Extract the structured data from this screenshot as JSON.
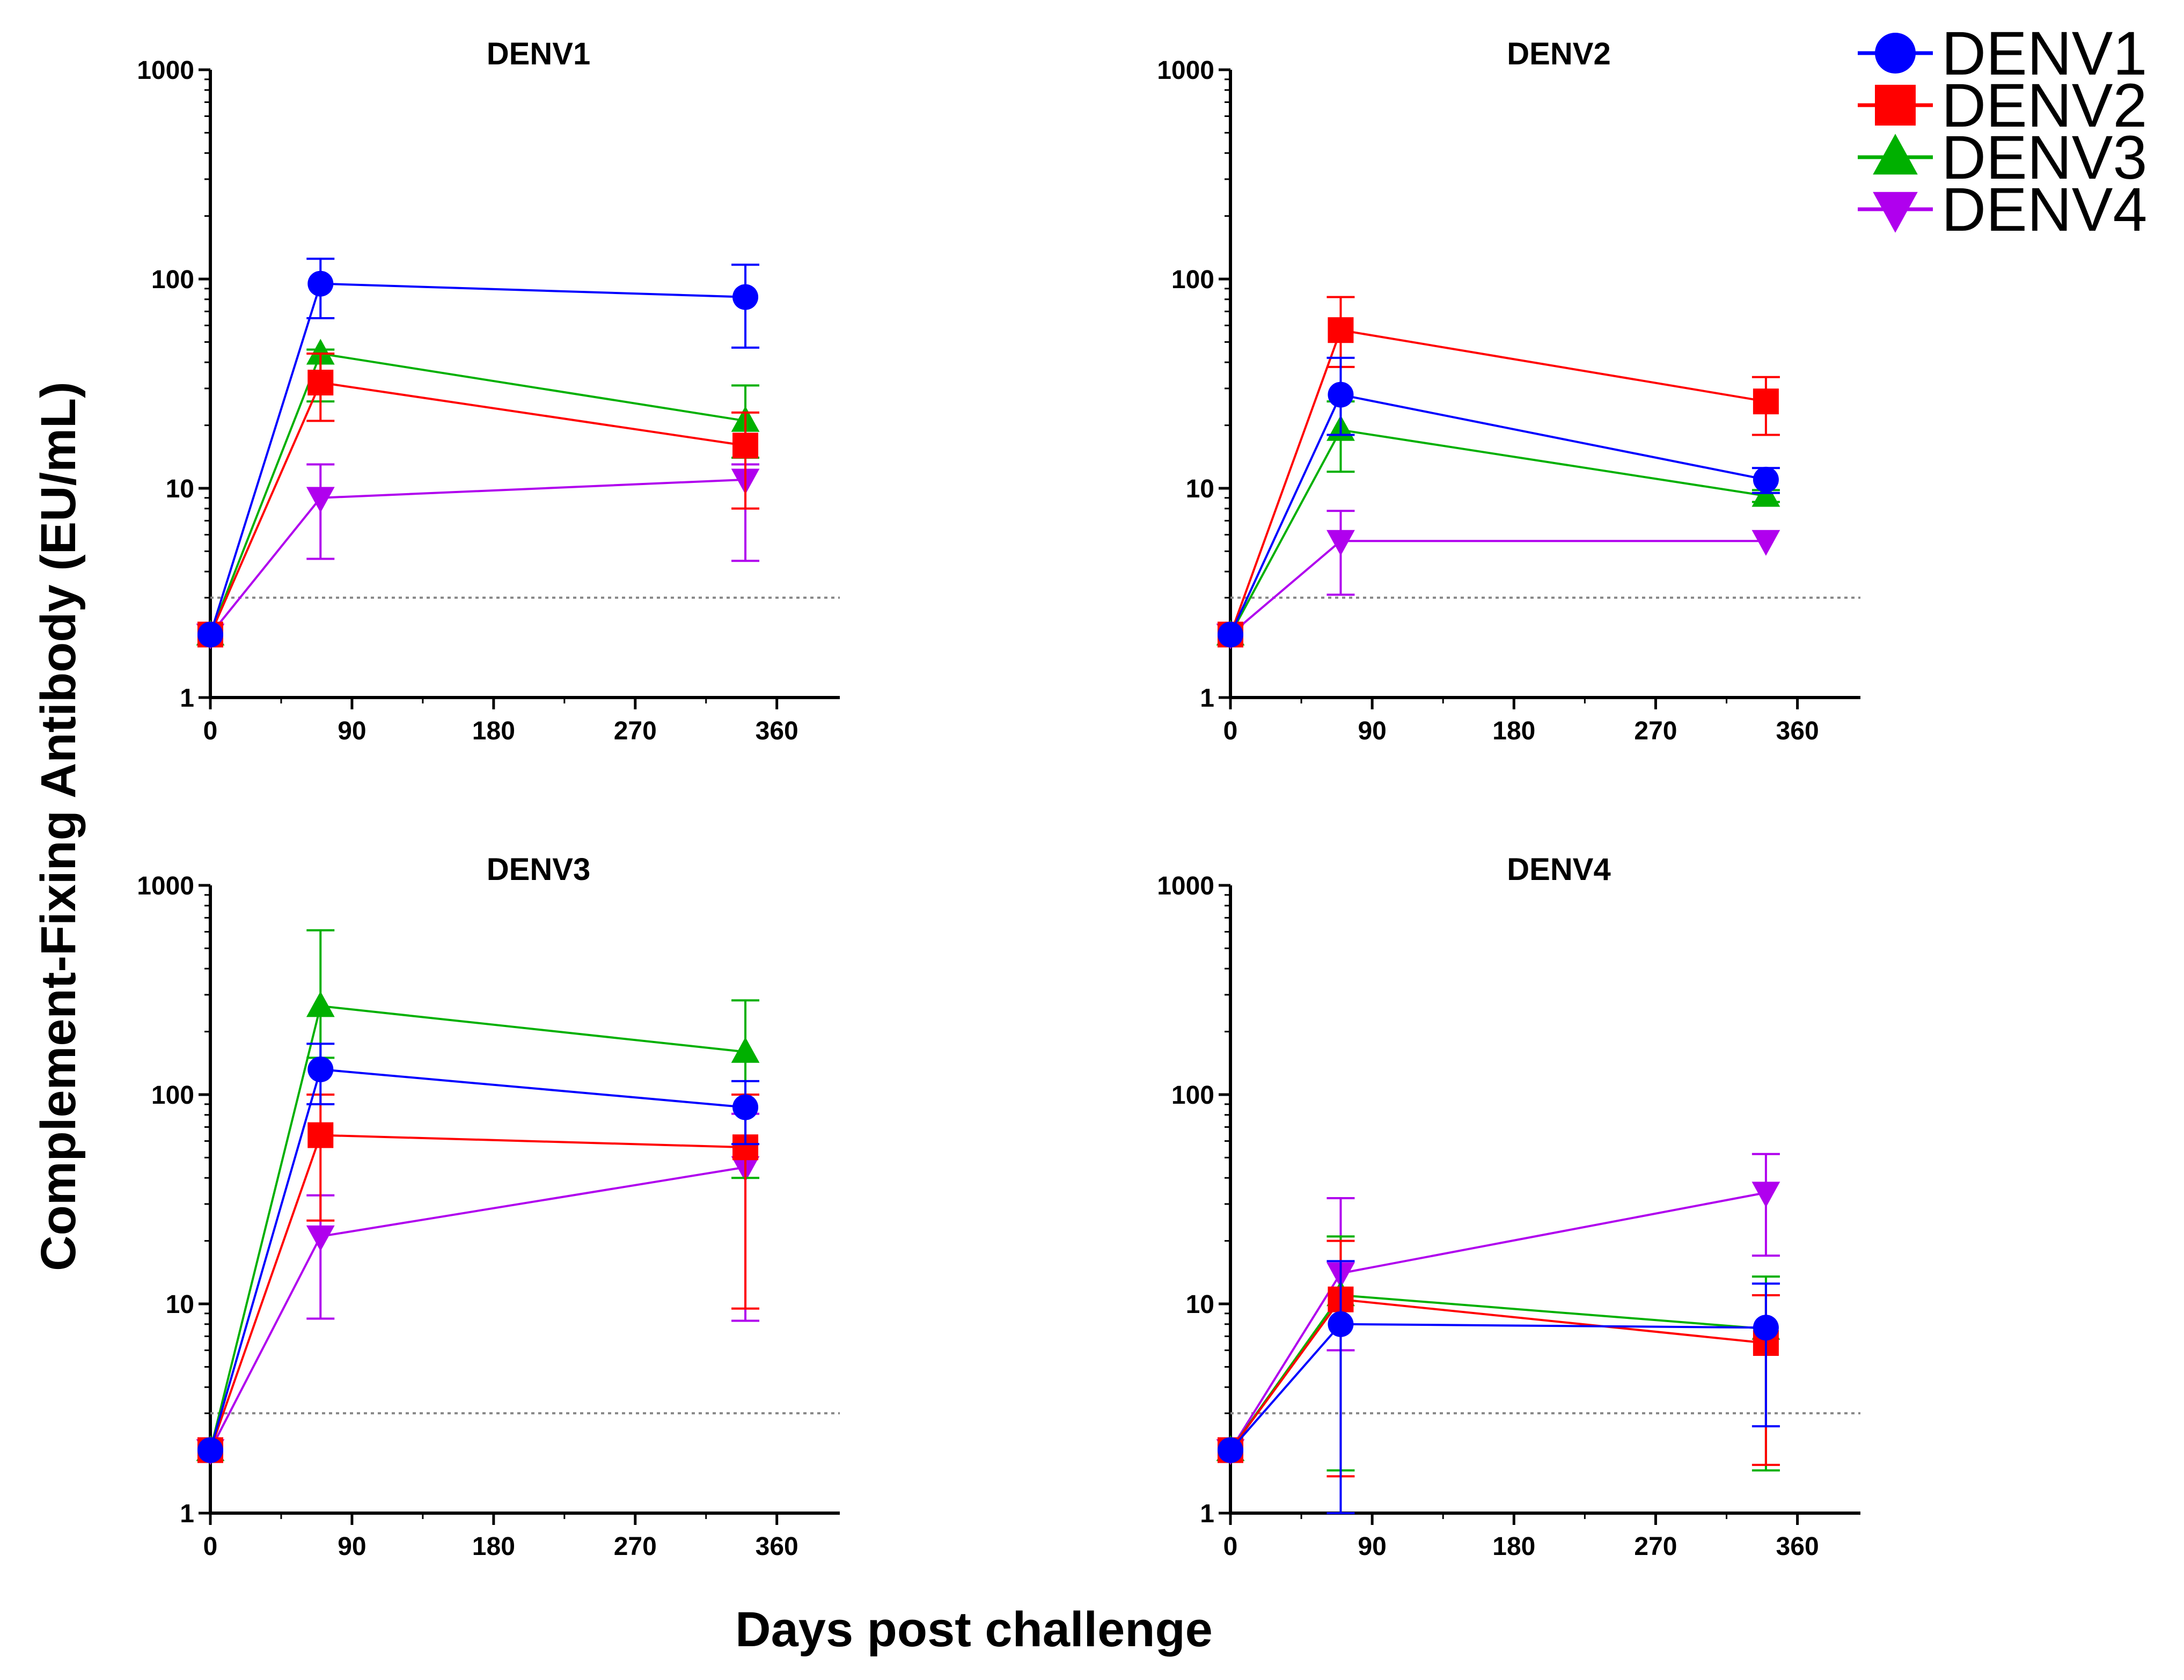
{
  "chart_data": {
    "type": "line",
    "ylabel": "Complement-Fixing Antibody (EU/mL)",
    "xlabel": "Days post challenge",
    "x_ticks": [
      0,
      90,
      180,
      270,
      360
    ],
    "y_ticks": [
      1,
      10,
      100,
      1000
    ],
    "y_tick_labels": [
      "1",
      "10",
      "100",
      "1000"
    ],
    "xlim": [
      0,
      400
    ],
    "ylim": [
      1,
      1000
    ],
    "y_scale": "log",
    "detection_limit": 3,
    "legend": {
      "placement": "top-right",
      "entries": [
        {
          "name": "DENV1",
          "color": "#0000ff",
          "marker": "circle"
        },
        {
          "name": "DENV2",
          "color": "#ff0000",
          "marker": "square"
        },
        {
          "name": "DENV3",
          "color": "#00b000",
          "marker": "triangle-up"
        },
        {
          "name": "DENV4",
          "color": "#b000ee",
          "marker": "triangle-down"
        }
      ]
    },
    "panels": [
      {
        "title": "DENV1",
        "series": [
          {
            "name": "DENV1",
            "x": [
              0,
              70,
              340
            ],
            "y": [
              2,
              95,
              82
            ],
            "err_low": [
              2,
              65,
              47
            ],
            "err_high": [
              2,
              125,
              117
            ]
          },
          {
            "name": "DENV2",
            "x": [
              0,
              70,
              340
            ],
            "y": [
              2,
              32,
              16
            ],
            "err_low": [
              2,
              21,
              8
            ],
            "err_high": [
              2,
              44,
              23
            ]
          },
          {
            "name": "DENV3",
            "x": [
              0,
              70,
              340
            ],
            "y": [
              2,
              44,
              21
            ],
            "err_low": [
              2,
              26,
              14
            ],
            "err_high": [
              2,
              46,
              31
            ]
          },
          {
            "name": "DENV4",
            "x": [
              0,
              70,
              340
            ],
            "y": [
              2,
              9,
              11
            ],
            "err_low": [
              2,
              4.6,
              4.5
            ],
            "err_high": [
              2,
              13,
              13
            ]
          }
        ]
      },
      {
        "title": "DENV2",
        "series": [
          {
            "name": "DENV1",
            "x": [
              0,
              70,
              340
            ],
            "y": [
              2,
              28,
              11
            ],
            "err_low": [
              2,
              18,
              9.5
            ],
            "err_high": [
              2,
              42,
              12.5
            ]
          },
          {
            "name": "DENV2",
            "x": [
              0,
              70,
              340
            ],
            "y": [
              2,
              57,
              26
            ],
            "err_low": [
              2,
              38,
              18
            ],
            "err_high": [
              2,
              82,
              34
            ]
          },
          {
            "name": "DENV3",
            "x": [
              0,
              70,
              340
            ],
            "y": [
              2,
              19,
              9.2
            ],
            "err_low": [
              2,
              12,
              8.6
            ],
            "err_high": [
              2,
              26,
              9.8
            ]
          },
          {
            "name": "DENV4",
            "x": [
              0,
              70,
              340
            ],
            "y": [
              2,
              5.6,
              5.6
            ],
            "err_low": [
              2,
              3.1,
              5.6
            ],
            "err_high": [
              2,
              7.8,
              5.6
            ]
          }
        ]
      },
      {
        "title": "DENV3",
        "series": [
          {
            "name": "DENV1",
            "x": [
              0,
              70,
              340
            ],
            "y": [
              2,
              132,
              87
            ],
            "err_low": [
              2,
              90,
              58
            ],
            "err_high": [
              2,
              175,
              116
            ]
          },
          {
            "name": "DENV2",
            "x": [
              0,
              70,
              340
            ],
            "y": [
              2,
              64,
              56
            ],
            "err_low": [
              2,
              25,
              9.5
            ],
            "err_high": [
              2,
              100,
              100
            ]
          },
          {
            "name": "DENV3",
            "x": [
              0,
              70,
              340
            ],
            "y": [
              2,
              265,
              160
            ],
            "err_low": [
              2,
              150,
              40
            ],
            "err_high": [
              2,
              610,
              282
            ]
          },
          {
            "name": "DENV4",
            "x": [
              0,
              70,
              340
            ],
            "y": [
              2,
              21,
              45
            ],
            "err_low": [
              2,
              8.5,
              8.3
            ],
            "err_high": [
              2,
              33,
              81
            ]
          }
        ]
      },
      {
        "title": "DENV4",
        "series": [
          {
            "name": "DENV1",
            "x": [
              0,
              70,
              340
            ],
            "y": [
              2,
              8,
              7.7
            ],
            "err_low": [
              2,
              1,
              2.6
            ],
            "err_high": [
              2,
              16,
              12.5
            ]
          },
          {
            "name": "DENV2",
            "x": [
              0,
              70,
              340
            ],
            "y": [
              2,
              10.5,
              6.5
            ],
            "err_low": [
              2,
              1.5,
              1.7
            ],
            "err_high": [
              2,
              20,
              11
            ]
          },
          {
            "name": "DENV3",
            "x": [
              0,
              70,
              340
            ],
            "y": [
              2,
              11,
              7.6
            ],
            "err_low": [
              2,
              1.6,
              1.6
            ],
            "err_high": [
              2,
              21,
              13.5
            ]
          },
          {
            "name": "DENV4",
            "x": [
              0,
              70,
              340
            ],
            "y": [
              2,
              14,
              34
            ],
            "err_low": [
              2,
              6,
              17
            ],
            "err_high": [
              2,
              32,
              52
            ]
          }
        ]
      }
    ]
  }
}
